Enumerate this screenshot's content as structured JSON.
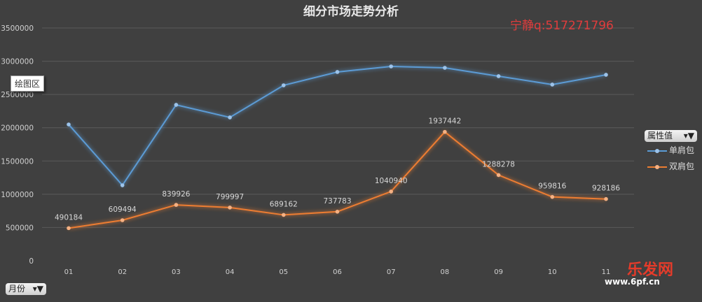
{
  "chart_data": {
    "type": "line",
    "title": "细分市场走势分析",
    "categories": [
      "01",
      "02",
      "03",
      "04",
      "05",
      "06",
      "07",
      "08",
      "09",
      "10",
      "11"
    ],
    "ylim": [
      0,
      3500000
    ],
    "yticks": [
      0,
      500000,
      1000000,
      1500000,
      2000000,
      2500000,
      3000000,
      3500000
    ],
    "grid": true,
    "legend_placement": "right",
    "legend_title": "属性值",
    "series": [
      {
        "name": "单肩包",
        "color": "#5b9bd5",
        "values": [
          2049000,
          1135000,
          2344000,
          2155000,
          2638000,
          2838000,
          2922000,
          2901000,
          2775000,
          2649000,
          2796000
        ],
        "labels": false
      },
      {
        "name": "双肩包",
        "color": "#ed7d31",
        "values": [
          490184,
          609494,
          839926,
          799997,
          689162,
          737783,
          1040940,
          1937442,
          1288278,
          959816,
          928186
        ],
        "labels": true
      }
    ]
  },
  "ui": {
    "plot_tooltip": "绘图区",
    "axis_filter": "月份",
    "watermark": "宁静q:517271796",
    "logo_text": "乐发网",
    "logo_url": "www.6pf.cn"
  }
}
